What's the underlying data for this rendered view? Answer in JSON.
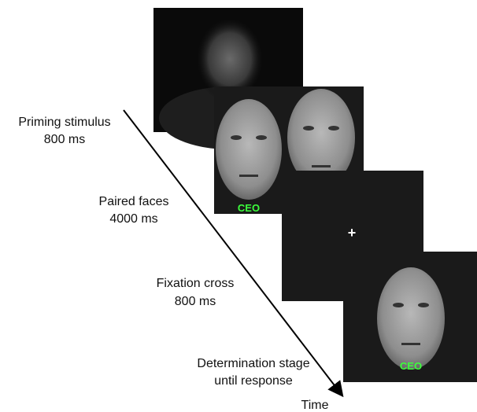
{
  "stages": [
    {
      "label": "Priming stimulus",
      "duration": "800 ms"
    },
    {
      "label": "Paired faces",
      "duration": "4000 ms"
    },
    {
      "label": "Fixation cross",
      "duration": "800 ms"
    },
    {
      "label": "Determination stage",
      "duration": "until response"
    }
  ],
  "panels": {
    "paired_faces_caption": "CEO",
    "fixation_symbol": "+",
    "determination_caption": "CEO"
  },
  "axis_label": "Time"
}
